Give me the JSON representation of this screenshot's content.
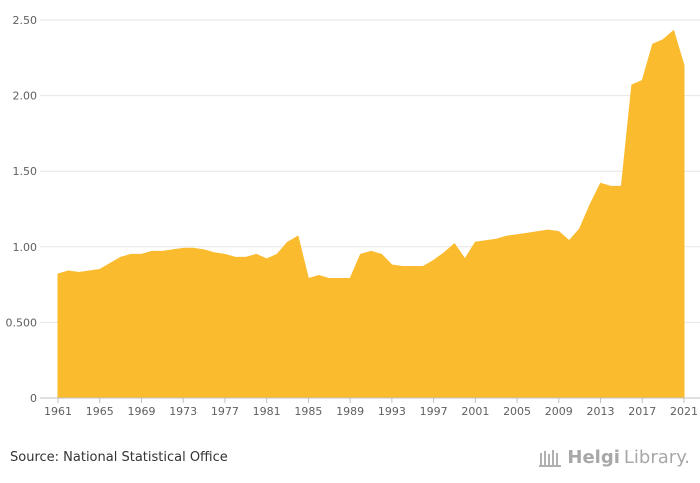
{
  "chart_data": {
    "type": "area",
    "title": "",
    "xlabel": "",
    "ylabel": "",
    "x": [
      1961,
      1962,
      1963,
      1964,
      1965,
      1966,
      1967,
      1968,
      1969,
      1970,
      1971,
      1972,
      1973,
      1974,
      1975,
      1976,
      1977,
      1978,
      1979,
      1980,
      1981,
      1982,
      1983,
      1984,
      1985,
      1986,
      1987,
      1988,
      1989,
      1990,
      1991,
      1992,
      1993,
      1994,
      1995,
      1996,
      1997,
      1998,
      1999,
      2000,
      2001,
      2002,
      2003,
      2004,
      2005,
      2006,
      2007,
      2008,
      2009,
      2010,
      2011,
      2012,
      2013,
      2014,
      2015,
      2016,
      2017,
      2018,
      2019,
      2020,
      2021
    ],
    "values": [
      0.82,
      0.84,
      0.83,
      0.84,
      0.85,
      0.89,
      0.93,
      0.95,
      0.95,
      0.97,
      0.97,
      0.98,
      0.99,
      0.99,
      0.98,
      0.96,
      0.95,
      0.93,
      0.93,
      0.95,
      0.92,
      0.95,
      1.03,
      1.07,
      0.79,
      0.81,
      0.79,
      0.79,
      0.79,
      0.95,
      0.97,
      0.95,
      0.88,
      0.87,
      0.87,
      0.87,
      0.91,
      0.96,
      1.02,
      0.92,
      1.03,
      1.04,
      1.05,
      1.07,
      1.08,
      1.09,
      1.1,
      1.11,
      1.1,
      1.04,
      1.12,
      1.28,
      1.42,
      1.4,
      1.4,
      2.07,
      2.1,
      2.34,
      2.37,
      2.43,
      2.2
    ],
    "xlim": [
      1961,
      2021
    ],
    "ylim": [
      0,
      2.5
    ],
    "x_ticks": [
      1961,
      1965,
      1969,
      1973,
      1977,
      1981,
      1985,
      1989,
      1993,
      1997,
      2001,
      2005,
      2009,
      2013,
      2017,
      2021
    ],
    "y_ticks": [
      0,
      0.5,
      1.0,
      1.5,
      2.0,
      2.5
    ],
    "y_tick_labels": [
      "0",
      "0.500",
      "1.00",
      "1.50",
      "2.00",
      "2.50"
    ],
    "grid": true,
    "color": "#fbbb2e"
  },
  "footer": {
    "source": "Source: National Statistical Office",
    "brand_bold": "Helgi",
    "brand_light": "Library."
  }
}
